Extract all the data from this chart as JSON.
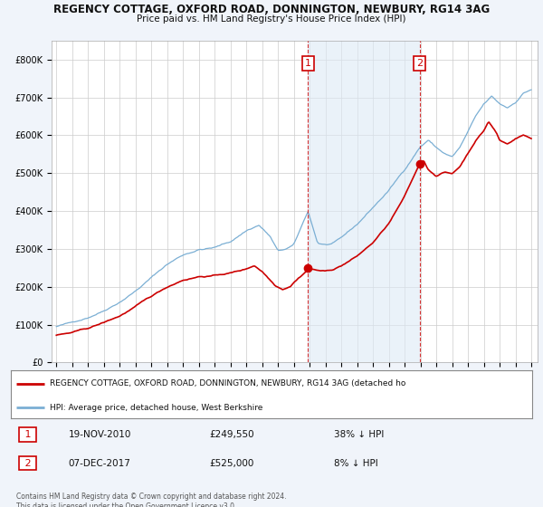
{
  "title1": "REGENCY COTTAGE, OXFORD ROAD, DONNINGTON, NEWBURY, RG14 3AG",
  "title2": "Price paid vs. HM Land Registry's House Price Index (HPI)",
  "legend_line1": "REGENCY COTTAGE, OXFORD ROAD, DONNINGTON, NEWBURY, RG14 3AG (detached ho",
  "legend_line2": "HPI: Average price, detached house, West Berkshire",
  "annotation1_date": "19-NOV-2010",
  "annotation1_price": "£249,550",
  "annotation1_hpi": "38% ↓ HPI",
  "annotation1_year": 2010.9,
  "annotation1_value": 249550,
  "annotation2_date": "07-DEC-2017",
  "annotation2_price": "£525,000",
  "annotation2_hpi": "8% ↓ HPI",
  "annotation2_year": 2017.95,
  "annotation2_value": 525000,
  "footer": "Contains HM Land Registry data © Crown copyright and database right 2024.\nThis data is licensed under the Open Government Licence v3.0.",
  "ylim": [
    0,
    850000
  ],
  "yticks": [
    0,
    100000,
    200000,
    300000,
    400000,
    500000,
    600000,
    700000,
    800000
  ],
  "ytick_labels": [
    "£0",
    "£100K",
    "£200K",
    "£300K",
    "£400K",
    "£500K",
    "£600K",
    "£700K",
    "£800K"
  ],
  "hpi_color": "#7bafd4",
  "hpi_fill_color": "#ddeaf5",
  "price_color": "#cc0000",
  "background_color": "#f0f4fa",
  "plot_bg_color": "#ffffff",
  "annotation_box_color": "#cc0000",
  "grid_color": "#cccccc",
  "xlim_start": 1995,
  "xlim_end": 2025
}
